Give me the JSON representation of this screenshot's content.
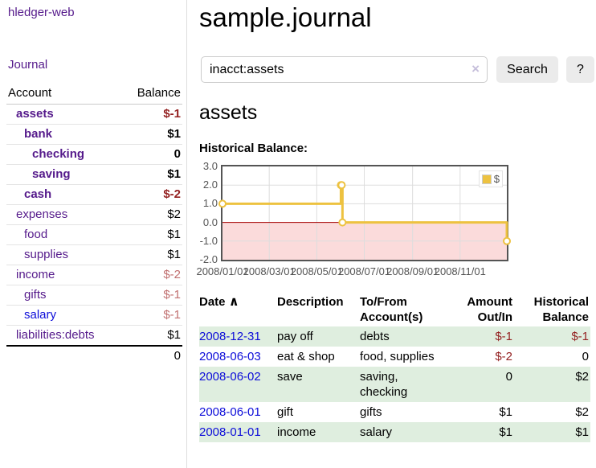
{
  "app": {
    "title": "hledger-web"
  },
  "sidebar": {
    "journal_link": "Journal",
    "accounts": {
      "col_account": "Account",
      "col_balance": "Balance",
      "rows": [
        {
          "name": "assets",
          "balance": "$-1",
          "level": 0,
          "bold": true,
          "color": "purple",
          "balance_tone": "neg-strong"
        },
        {
          "name": "bank",
          "balance": "$1",
          "level": 1,
          "bold": true,
          "color": "purple",
          "balance_tone": "normal"
        },
        {
          "name": "checking",
          "balance": "0",
          "level": 2,
          "bold": true,
          "color": "purple",
          "balance_tone": "normal"
        },
        {
          "name": "saving",
          "balance": "$1",
          "level": 2,
          "bold": true,
          "color": "purple",
          "balance_tone": "normal"
        },
        {
          "name": "cash",
          "balance": "$-2",
          "level": 1,
          "bold": true,
          "color": "purple",
          "balance_tone": "neg-strong"
        },
        {
          "name": "expenses",
          "balance": "$2",
          "level": 0,
          "bold": false,
          "color": "purple",
          "balance_tone": "normal"
        },
        {
          "name": "food",
          "balance": "$1",
          "level": 1,
          "bold": false,
          "color": "purple",
          "balance_tone": "normal"
        },
        {
          "name": "supplies",
          "balance": "$1",
          "level": 1,
          "bold": false,
          "color": "purple",
          "balance_tone": "normal"
        },
        {
          "name": "income",
          "balance": "$-2",
          "level": 0,
          "bold": false,
          "color": "purple",
          "balance_tone": "neg-soft"
        },
        {
          "name": "gifts",
          "balance": "$-1",
          "level": 1,
          "bold": false,
          "color": "purple",
          "balance_tone": "neg-soft"
        },
        {
          "name": "salary",
          "balance": "$-1",
          "level": 1,
          "bold": false,
          "color": "blue",
          "balance_tone": "neg-soft"
        },
        {
          "name": "liabilities:debts",
          "balance": "$1",
          "level": 0,
          "bold": false,
          "color": "purple",
          "balance_tone": "normal"
        }
      ],
      "total": "0"
    }
  },
  "main": {
    "title": "sample.journal",
    "search": {
      "value": "inacct:assets",
      "clear_icon": "×",
      "search_button": "Search",
      "help_button": "?"
    },
    "account_heading": "assets",
    "chart_title": "Historical Balance:"
  },
  "register": {
    "headers": {
      "date": "Date",
      "sort_icon": "∧",
      "description": "Description",
      "account_line1": "To/From",
      "account_line2": "Account(s)",
      "amount_line1": "Amount",
      "amount_line2": "Out/In",
      "balance_line1": "Historical",
      "balance_line2": "Balance"
    },
    "rows": [
      {
        "date": "2008-12-31",
        "description": "pay off",
        "accounts": "debts",
        "amount": "$-1",
        "amount_negative": true,
        "balance": "$-1",
        "balance_negative": true,
        "shaded": true
      },
      {
        "date": "2008-06-03",
        "description": "eat & shop",
        "accounts": "food, supplies",
        "amount": "$-2",
        "amount_negative": true,
        "balance": "0",
        "balance_negative": false,
        "shaded": false
      },
      {
        "date": "2008-06-02",
        "description": "save",
        "accounts": "saving, checking",
        "amount": "0",
        "amount_negative": false,
        "balance": "$2",
        "balance_negative": false,
        "shaded": true
      },
      {
        "date": "2008-06-01",
        "description": "gift",
        "accounts": "gifts",
        "amount": "$1",
        "amount_negative": false,
        "balance": "$2",
        "balance_negative": false,
        "shaded": false
      },
      {
        "date": "2008-01-01",
        "description": "income",
        "accounts": "salary",
        "amount": "$1",
        "amount_negative": false,
        "balance": "$1",
        "balance_negative": false,
        "shaded": true
      }
    ]
  },
  "chart_data": {
    "type": "line",
    "title": "Historical Balance",
    "steps": true,
    "series": [
      {
        "name": "$",
        "color": "#edc240",
        "points": [
          {
            "date": "2008-01-01",
            "value": 1
          },
          {
            "date": "2008-06-01",
            "value": 2
          },
          {
            "date": "2008-06-02",
            "value": 2
          },
          {
            "date": "2008-06-03",
            "value": 0
          },
          {
            "date": "2008-12-31",
            "value": -1
          }
        ]
      }
    ],
    "x_range": [
      "2008-01-01",
      "2008-12-31"
    ],
    "y_range": [
      -2,
      3
    ],
    "x_ticks": [
      "2008/01/01",
      "2008/03/01",
      "2008/05/01",
      "2008/07/01",
      "2008/09/01",
      "2008/11/01"
    ],
    "y_ticks": [
      "3.0",
      "2.0",
      "1.0",
      "0.0",
      "-1.0",
      "-2.0"
    ],
    "grid": true,
    "legend_position": "top-right",
    "negative_region_color": "#fbdbdb",
    "zero_line_color": "#a40000",
    "grid_color": "#dddddd",
    "border_color": "#545454"
  },
  "colors": {
    "link_purple": "#551a8b",
    "link_blue": "#0d0dd9",
    "negative_strong": "#942222",
    "negative_soft": "#c17070",
    "row_green": "#dfeedf",
    "series_gold": "#edc240"
  }
}
